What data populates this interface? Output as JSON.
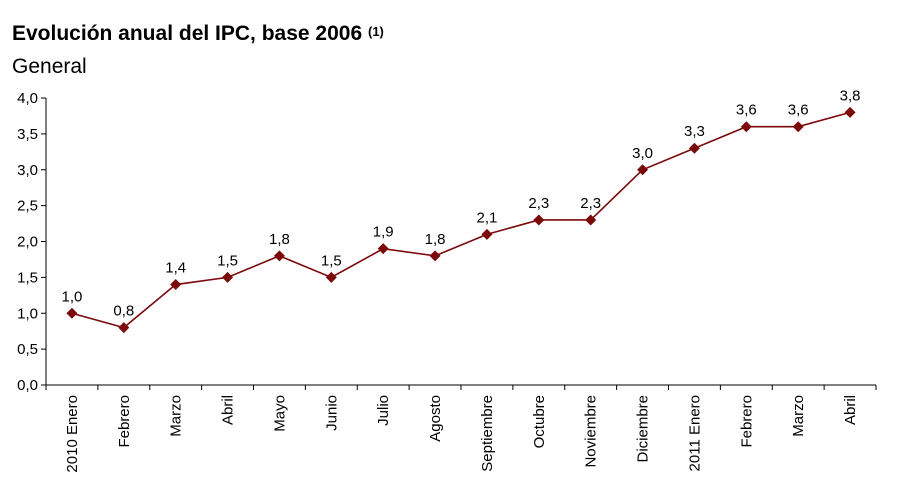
{
  "title": "Evolución anual del IPC, base 2006",
  "title_note": "(1)",
  "subtitle": "General",
  "chart_data": {
    "type": "line",
    "title": "Evolución anual del IPC, base 2006",
    "subtitle": "General",
    "xlabel": "",
    "ylabel": "",
    "ylim": [
      0,
      4
    ],
    "yticks": [
      "0,0",
      "0,5",
      "1,0",
      "1,5",
      "2,0",
      "2,5",
      "3,0",
      "3,5",
      "4,0"
    ],
    "grid": false,
    "categories": [
      "2010 Enero",
      "Febrero",
      "Marzo",
      "Abril",
      "Mayo",
      "Junio",
      "Julio",
      "Agosto",
      "Septiembre",
      "Octubre",
      "Noviembre",
      "Diciembre",
      "2011 Enero",
      "Febrero",
      "Marzo",
      "Abril"
    ],
    "series": [
      {
        "name": "General",
        "color": "#7b0a0a",
        "values": [
          1.0,
          0.8,
          1.4,
          1.5,
          1.8,
          1.5,
          1.9,
          1.8,
          2.1,
          2.3,
          2.3,
          3.0,
          3.3,
          3.6,
          3.6,
          3.8
        ],
        "labels": [
          "1,0",
          "0,8",
          "1,4",
          "1,5",
          "1,8",
          "1,5",
          "1,9",
          "1,8",
          "2,1",
          "2,3",
          "2,3",
          "3,0",
          "3,3",
          "3,6",
          "3,6",
          "3,8"
        ]
      }
    ]
  }
}
